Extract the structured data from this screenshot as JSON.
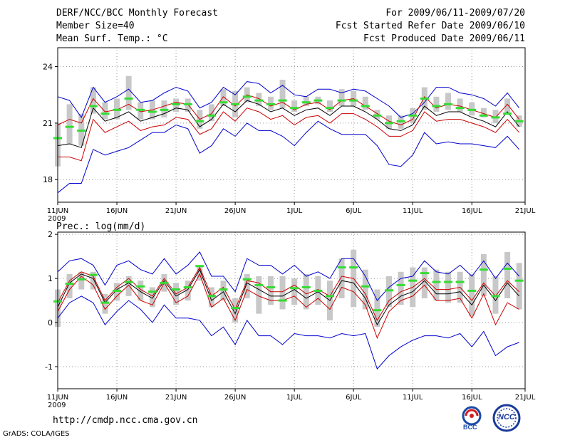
{
  "header": {
    "title": "DERF/NCC/BCC Monthly Forecast",
    "member": "Member Size=40",
    "variable": "Mean Surf. Temp.: °C",
    "period": "For 2009/06/11-2009/07/20",
    "refer": "Fcst Started Refer Date 2009/06/10",
    "produced": "Fcst Produced Date 2009/06/11"
  },
  "footer": {
    "url": "http://cmdp.ncc.cma.gov.cn",
    "grads": "GrADS: COLA/IGES",
    "logo_bcc": "BCC",
    "logo_ncc": "NCC"
  },
  "colors": {
    "blue": "#0000cc",
    "red": "#cc0000",
    "black": "#000000",
    "green": "#33dd33",
    "gray": "#c8c8c8",
    "grid": "#999999"
  },
  "chart_data": [
    {
      "type": "line",
      "title": "Mean Surf. Temp.: °C",
      "ylim": [
        16.8,
        25
      ],
      "yticks": [
        18,
        21,
        24
      ],
      "xlim": [
        0,
        39.5
      ],
      "xticks": [
        {
          "i": 0,
          "label": "11JUN",
          "sub": "2009"
        },
        {
          "i": 5,
          "label": "16JUN"
        },
        {
          "i": 10,
          "label": "21JUN"
        },
        {
          "i": 15,
          "label": "26JUN"
        },
        {
          "i": 20,
          "label": "1JUL"
        },
        {
          "i": 25,
          "label": "6JUL"
        },
        {
          "i": 30,
          "label": "11JUL"
        },
        {
          "i": 35,
          "label": "16JUL"
        },
        {
          "i": 39.5,
          "label": "21JUL"
        }
      ],
      "series": [
        {
          "name": "max",
          "color": "blue",
          "values": [
            22.4,
            22.2,
            21.3,
            22.9,
            22.1,
            22.4,
            22.8,
            22.1,
            22.2,
            22.6,
            22.9,
            22.7,
            21.8,
            22.1,
            22.9,
            22.5,
            23.2,
            23.1,
            22.6,
            23.0,
            22.5,
            22.4,
            22.8,
            22.8,
            22.6,
            22.8,
            22.7,
            22.3,
            21.9,
            21.3,
            21.5,
            22.1,
            22.9,
            22.9,
            22.6,
            22.5,
            22.3,
            21.9,
            22.6,
            21.8
          ]
        },
        {
          "name": "upper",
          "color": "red",
          "values": [
            20.9,
            21.2,
            21.0,
            22.3,
            21.6,
            21.7,
            22.0,
            21.6,
            21.7,
            21.9,
            22.1,
            22.0,
            21.2,
            21.5,
            22.4,
            21.9,
            22.5,
            22.3,
            21.9,
            22.1,
            21.7,
            22.0,
            22.1,
            21.7,
            22.2,
            22.3,
            21.9,
            21.5,
            21.1,
            20.9,
            21.2,
            22.4,
            21.8,
            22.0,
            21.9,
            21.7,
            21.5,
            21.3,
            22.0,
            21.2
          ]
        },
        {
          "name": "mean",
          "color": "black",
          "values": [
            19.8,
            19.9,
            19.7,
            21.8,
            21.1,
            21.3,
            21.6,
            21.1,
            21.3,
            21.5,
            21.8,
            21.7,
            20.8,
            21.2,
            22.0,
            21.6,
            22.2,
            22.0,
            21.6,
            21.8,
            21.4,
            21.7,
            21.8,
            21.4,
            21.9,
            21.9,
            21.6,
            21.2,
            20.7,
            20.6,
            20.9,
            21.9,
            21.4,
            21.6,
            21.6,
            21.3,
            21.1,
            20.8,
            21.6,
            20.8
          ]
        },
        {
          "name": "lower",
          "color": "red",
          "values": [
            19.2,
            19.2,
            19.0,
            21.2,
            20.5,
            20.8,
            21.1,
            20.6,
            20.8,
            20.9,
            21.3,
            21.2,
            20.4,
            20.7,
            21.6,
            21.1,
            21.8,
            21.6,
            21.2,
            21.4,
            20.9,
            21.3,
            21.4,
            21.0,
            21.5,
            21.5,
            21.2,
            20.8,
            20.3,
            20.3,
            20.6,
            21.6,
            21.1,
            21.2,
            21.2,
            21.0,
            20.8,
            20.5,
            21.2,
            20.5
          ]
        },
        {
          "name": "min",
          "color": "blue",
          "values": [
            17.3,
            17.8,
            17.8,
            19.6,
            19.3,
            19.5,
            19.7,
            20.1,
            20.5,
            20.5,
            20.9,
            20.7,
            19.4,
            19.8,
            20.7,
            20.3,
            21.0,
            20.6,
            20.6,
            20.3,
            19.8,
            20.5,
            21.1,
            20.7,
            20.4,
            20.4,
            20.4,
            19.8,
            18.8,
            18.7,
            19.3,
            20.5,
            19.9,
            20.0,
            19.9,
            19.9,
            19.8,
            19.7,
            20.3,
            19.6
          ]
        },
        {
          "name": "ensemble",
          "color": "green",
          "values": [
            20.2,
            20.8,
            20.6,
            21.9,
            21.5,
            21.7,
            22.3,
            21.7,
            21.6,
            21.7,
            22.0,
            22.0,
            21.1,
            21.4,
            22.1,
            22.0,
            22.4,
            22.2,
            22.0,
            22.2,
            21.8,
            22.1,
            22.2,
            21.8,
            22.2,
            22.2,
            21.9,
            21.4,
            21.0,
            21.1,
            21.4,
            22.3,
            21.9,
            22.0,
            21.8,
            21.7,
            21.4,
            21.3,
            21.5,
            21.1
          ]
        }
      ],
      "boxes": {
        "low": [
          18.7,
          19.9,
          19.8,
          21.5,
          21.2,
          21.2,
          21.7,
          21.2,
          21.2,
          21.3,
          21.6,
          21.6,
          20.7,
          21.1,
          21.9,
          21.3,
          22.1,
          21.9,
          21.7,
          21.8,
          21.6,
          21.9,
          22.0,
          21.6,
          21.9,
          21.9,
          21.7,
          21.2,
          20.7,
          20.7,
          21.0,
          21.7,
          21.6,
          21.7,
          21.6,
          21.4,
          21.3,
          21.0,
          21.5,
          20.8
        ],
        "high": [
          21.0,
          22.0,
          21.5,
          22.9,
          22.1,
          22.3,
          23.5,
          22.1,
          22.2,
          22.2,
          22.3,
          22.3,
          21.7,
          22.0,
          22.8,
          22.7,
          22.9,
          22.6,
          22.4,
          23.3,
          22.2,
          22.4,
          22.4,
          22.2,
          22.8,
          22.7,
          22.4,
          21.7,
          21.4,
          21.4,
          21.8,
          22.9,
          22.4,
          22.6,
          22.3,
          22.1,
          21.8,
          21.7,
          22.3,
          21.4
        ]
      }
    },
    {
      "type": "line",
      "title": "Prec.: log(mm/d)",
      "ylim": [
        -1.5,
        2.05
      ],
      "yticks": [
        -1,
        0,
        1,
        2
      ],
      "xlim": [
        0,
        39.5
      ],
      "xticks": [
        {
          "i": 0,
          "label": "11JUN",
          "sub": "2009"
        },
        {
          "i": 5,
          "label": "16JUN"
        },
        {
          "i": 10,
          "label": "21JUN"
        },
        {
          "i": 15,
          "label": "26JUN"
        },
        {
          "i": 20,
          "label": "1JUL"
        },
        {
          "i": 25,
          "label": "6JUL"
        },
        {
          "i": 30,
          "label": "11JUL"
        },
        {
          "i": 35,
          "label": "16JUL"
        },
        {
          "i": 39.5,
          "label": "21JUL"
        }
      ],
      "series": [
        {
          "name": "max",
          "color": "blue",
          "values": [
            1.15,
            1.4,
            1.45,
            1.3,
            0.85,
            1.3,
            1.4,
            1.2,
            1.1,
            1.45,
            1.1,
            1.3,
            1.6,
            1.05,
            1.05,
            0.7,
            1.45,
            1.3,
            1.3,
            1.1,
            1.3,
            1.05,
            1.15,
            1.0,
            1.45,
            1.45,
            1.05,
            0.5,
            0.8,
            1.0,
            1.05,
            1.4,
            1.15,
            1.1,
            1.3,
            1.05,
            1.4,
            1.0,
            1.35,
            1.05
          ]
        },
        {
          "name": "upper",
          "color": "red",
          "values": [
            0.45,
            0.95,
            1.15,
            1.05,
            0.5,
            0.8,
            1.0,
            0.75,
            0.6,
            1.0,
            0.65,
            0.8,
            1.25,
            0.6,
            0.8,
            0.3,
            0.95,
            0.9,
            0.7,
            0.7,
            0.85,
            0.65,
            0.75,
            0.6,
            1.05,
            1.0,
            0.65,
            0.05,
            0.5,
            0.7,
            0.8,
            1.0,
            0.75,
            0.75,
            0.8,
            0.5,
            0.9,
            0.6,
            0.95,
            0.7
          ]
        },
        {
          "name": "mean",
          "color": "black",
          "values": [
            0.35,
            0.9,
            1.1,
            1.0,
            0.45,
            0.75,
            0.9,
            0.7,
            0.55,
            0.95,
            0.6,
            0.75,
            1.2,
            0.5,
            0.7,
            0.2,
            0.9,
            0.75,
            0.6,
            0.6,
            0.75,
            0.55,
            0.7,
            0.5,
            0.95,
            0.9,
            0.55,
            -0.05,
            0.4,
            0.6,
            0.7,
            0.95,
            0.65,
            0.65,
            0.7,
            0.4,
            0.85,
            0.5,
            0.9,
            0.6
          ]
        },
        {
          "name": "lower",
          "color": "red",
          "values": [
            0.25,
            0.75,
            1.05,
            0.85,
            0.3,
            0.6,
            0.85,
            0.5,
            0.4,
            0.9,
            0.45,
            0.6,
            1.1,
            0.35,
            0.55,
            0.05,
            0.75,
            0.6,
            0.5,
            0.5,
            0.6,
            0.35,
            0.55,
            0.3,
            0.8,
            0.7,
            0.4,
            -0.35,
            0.25,
            0.5,
            0.6,
            0.85,
            0.5,
            0.5,
            0.55,
            0.1,
            0.65,
            -0.05,
            0.45,
            0.3
          ]
        },
        {
          "name": "min",
          "color": "blue",
          "values": [
            0.1,
            0.45,
            0.6,
            0.45,
            -0.05,
            0.25,
            0.5,
            0.3,
            0.0,
            0.4,
            0.1,
            0.1,
            0.05,
            -0.3,
            -0.1,
            -0.5,
            0.05,
            -0.3,
            -0.3,
            -0.5,
            -0.25,
            -0.3,
            -0.3,
            -0.35,
            -0.25,
            -0.3,
            -0.25,
            -1.05,
            -0.75,
            -0.55,
            -0.4,
            -0.3,
            -0.3,
            -0.35,
            -0.25,
            -0.55,
            -0.2,
            -0.75,
            -0.55,
            -0.45
          ]
        },
        {
          "name": "ensemble",
          "color": "green",
          "values": [
            0.48,
            0.88,
            0.98,
            1.08,
            0.45,
            0.72,
            0.92,
            0.82,
            0.7,
            0.9,
            0.75,
            0.8,
            1.28,
            0.6,
            0.75,
            0.33,
            0.98,
            0.85,
            0.8,
            0.5,
            0.78,
            0.8,
            0.72,
            0.6,
            1.25,
            1.25,
            0.82,
            0.28,
            0.73,
            0.85,
            0.95,
            1.12,
            0.92,
            0.92,
            0.92,
            0.72,
            1.2,
            0.6,
            1.22,
            0.95
          ]
        }
      ],
      "boxes": {
        "low": [
          -0.1,
          0.55,
          0.75,
          0.75,
          0.2,
          0.5,
          0.6,
          0.5,
          0.35,
          0.7,
          0.4,
          0.5,
          0.95,
          0.35,
          0.5,
          0.0,
          0.55,
          0.2,
          0.4,
          0.3,
          0.4,
          0.3,
          0.4,
          0.05,
          0.55,
          0.35,
          0.3,
          -0.1,
          0.35,
          0.4,
          0.35,
          0.55,
          0.5,
          0.45,
          0.45,
          0.15,
          0.6,
          0.2,
          0.55,
          0.3
        ],
        "high": [
          0.75,
          1.1,
          1.15,
          1.15,
          0.65,
          0.9,
          1.05,
          0.95,
          0.8,
          1.1,
          0.9,
          0.95,
          1.3,
          0.8,
          0.95,
          0.55,
          1.1,
          1.05,
          1.05,
          1.05,
          1.0,
          1.1,
          1.05,
          0.95,
          1.45,
          1.65,
          1.2,
          0.75,
          1.05,
          1.15,
          1.25,
          1.25,
          1.2,
          1.15,
          1.15,
          1.1,
          1.55,
          1.05,
          1.6,
          1.35
        ]
      }
    }
  ]
}
